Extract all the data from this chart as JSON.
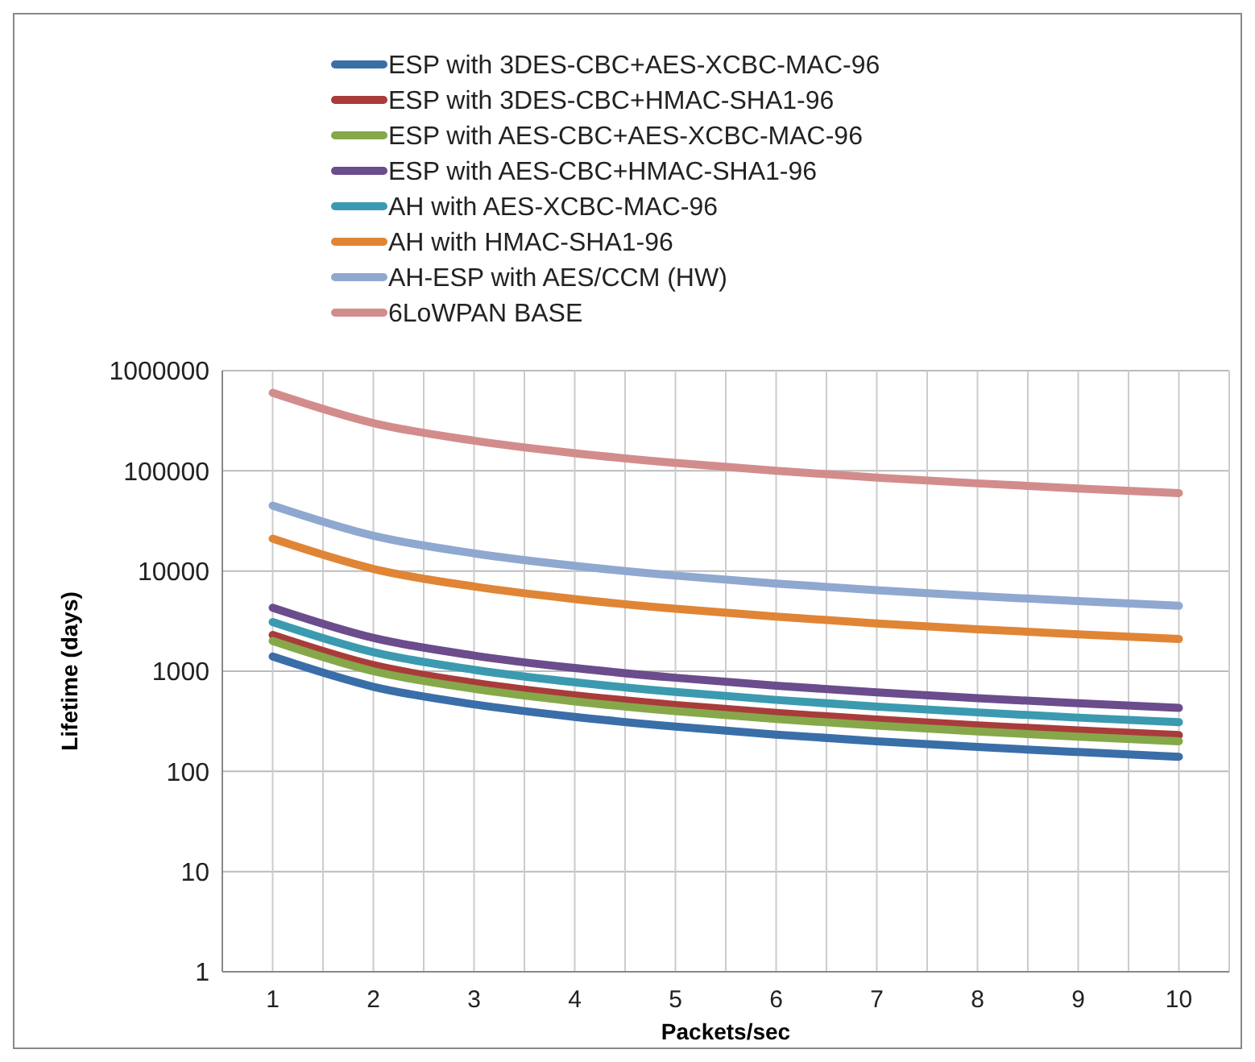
{
  "chart_data": {
    "type": "line",
    "xlabel": "Packets/sec",
    "ylabel": "Lifetime (days)",
    "categories": [
      "1",
      "2",
      "3",
      "4",
      "5",
      "6",
      "7",
      "8",
      "9",
      "10"
    ],
    "log": "y",
    "ylim": [
      1,
      1000000
    ],
    "yticks": [
      1,
      10,
      100,
      1000,
      10000,
      100000,
      1000000
    ],
    "grid": true,
    "legend": "top",
    "marker": "none",
    "line_style": "solid",
    "series": [
      {
        "name": "ESP with 3DES-CBC+AES-XCBC-MAC-96",
        "color": "#3a6ea8",
        "values": [
          1400,
          700,
          467,
          350,
          280,
          233,
          200,
          175,
          156,
          140
        ]
      },
      {
        "name": "ESP with 3DES-CBC+HMAC-SHA1-96",
        "color": "#a83c3a",
        "values": [
          2300,
          1150,
          767,
          575,
          460,
          383,
          329,
          288,
          256,
          230
        ]
      },
      {
        "name": "ESP with AES-CBC+AES-XCBC-MAC-96",
        "color": "#86a84a",
        "values": [
          2000,
          1000,
          667,
          500,
          400,
          333,
          286,
          250,
          222,
          200
        ]
      },
      {
        "name": "ESP with AES-CBC+HMAC-SHA1-96",
        "color": "#6b4c8c",
        "values": [
          4300,
          2150,
          1433,
          1075,
          860,
          717,
          614,
          538,
          478,
          430
        ]
      },
      {
        "name": "AH with AES-XCBC-MAC-96",
        "color": "#3b9ab0",
        "values": [
          3100,
          1550,
          1033,
          775,
          620,
          517,
          443,
          388,
          344,
          310
        ]
      },
      {
        "name": "AH with HMAC-SHA1-96",
        "color": "#e08535",
        "values": [
          21000,
          10500,
          7000,
          5250,
          4200,
          3500,
          3000,
          2625,
          2333,
          2100
        ]
      },
      {
        "name": "AH-ESP with AES/CCM (HW)",
        "color": "#8fa8d0",
        "values": [
          45000,
          22500,
          15000,
          11250,
          9000,
          7500,
          6429,
          5625,
          5000,
          4500
        ]
      },
      {
        "name": "6LoWPAN BASE",
        "color": "#d38c8c",
        "values": [
          600000,
          300000,
          200000,
          150000,
          120000,
          100000,
          85714,
          75000,
          66667,
          60000
        ]
      }
    ]
  }
}
